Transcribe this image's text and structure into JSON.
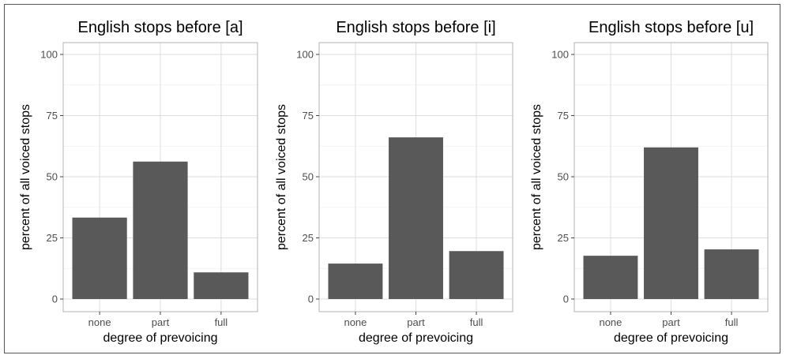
{
  "chart_data": [
    {
      "type": "bar",
      "title": "English stops before [a]",
      "xlabel": "degree of prevoicing",
      "ylabel": "percent of all voiced stops",
      "categories": [
        "none",
        "part",
        "full"
      ],
      "values": [
        33.3,
        56.2,
        10.9
      ],
      "ylim": [
        0,
        100
      ],
      "yticks": [
        0,
        25,
        50,
        75,
        100
      ],
      "grid": true
    },
    {
      "type": "bar",
      "title": "English stops before [i]",
      "xlabel": "degree of prevoicing",
      "ylabel": "percent of all voiced stops",
      "categories": [
        "none",
        "part",
        "full"
      ],
      "values": [
        14.5,
        66.1,
        19.6
      ],
      "ylim": [
        0,
        100
      ],
      "yticks": [
        0,
        25,
        50,
        75,
        100
      ],
      "grid": true
    },
    {
      "type": "bar",
      "title": "English stops before [u]",
      "xlabel": "degree of prevoicing",
      "ylabel": "percent of all voiced stops",
      "categories": [
        "none",
        "part",
        "full"
      ],
      "values": [
        17.7,
        62.0,
        20.3
      ],
      "ylim": [
        0,
        100
      ],
      "yticks": [
        0,
        25,
        50,
        75,
        100
      ],
      "grid": true
    }
  ],
  "colors": {
    "bar": "#595959",
    "grid": "#dedede",
    "panel_border": "#b3b3b3",
    "figure_border": "#555555"
  }
}
